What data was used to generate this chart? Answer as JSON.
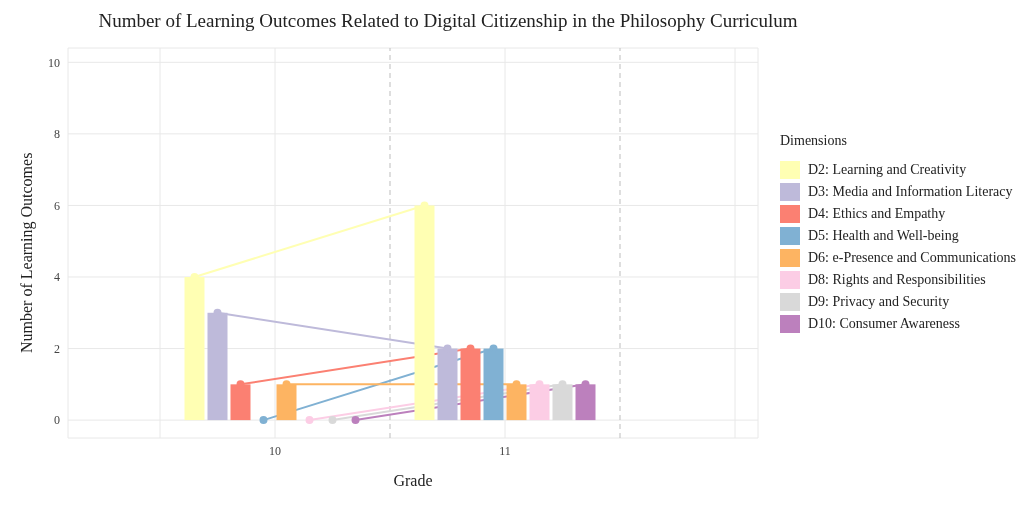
{
  "chart_data": {
    "type": "bar",
    "title": "Number of Learning Outcomes Related to Digital Citizenship in the Philosophy Curriculum",
    "xlabel": "Grade",
    "ylabel": "Number of Learning Outcomes",
    "legend_title": "Dimensions",
    "xlim": [
      9.1,
      12.1
    ],
    "xticks": [
      {
        "value": 9.5,
        "label": null
      },
      10,
      11,
      {
        "value": 12,
        "label": null
      }
    ],
    "ylim": [
      -0.5,
      10.4
    ],
    "yticks": [
      0,
      2,
      4,
      6,
      8,
      10
    ],
    "grid": true,
    "legend": "right",
    "marker": "circle",
    "line_style": "solid",
    "ref_lines": [
      {
        "axis": "x",
        "value": 10.5,
        "label": null,
        "line_style": "dashed",
        "color": "#bdbdbd"
      },
      {
        "axis": "x",
        "value": 11.5,
        "label": null,
        "line_style": "dashed",
        "color": "#bdbdbd"
      }
    ],
    "series": [
      {
        "name": "D2: Learning and Creativity",
        "color": "#ffffb3",
        "x": [
          9.65,
          10.65
        ],
        "values": [
          4,
          6
        ]
      },
      {
        "name": "D3: Media and Information Literacy",
        "color": "#bebada",
        "x": [
          9.75,
          10.75
        ],
        "values": [
          3,
          2
        ]
      },
      {
        "name": "D4: Ethics and Empathy",
        "color": "#fb8072",
        "x": [
          9.85,
          10.85
        ],
        "values": [
          1,
          2
        ]
      },
      {
        "name": "D5: Health and Well-being",
        "color": "#80b1d3",
        "x": [
          9.95,
          10.95
        ],
        "values": [
          0,
          2
        ]
      },
      {
        "name": "D6: e-Presence and Communications",
        "color": "#fdb462",
        "x": [
          10.05,
          11.05
        ],
        "values": [
          1,
          1
        ]
      },
      {
        "name": "D8: Rights and Responsibilities",
        "color": "#fccde5",
        "x": [
          10.15,
          11.15
        ],
        "values": [
          0,
          1
        ]
      },
      {
        "name": "D9: Privacy and Security",
        "color": "#d9d9d9",
        "x": [
          10.25,
          11.25
        ],
        "values": [
          0,
          1
        ]
      },
      {
        "name": "D10: Consumer Awareness",
        "color": "#bc80bd",
        "x": [
          10.35,
          11.35
        ],
        "values": [
          0,
          1
        ]
      },
      {
        "type": "line",
        "color": "#ffffb3",
        "x": [
          9.65,
          10.65
        ],
        "values": [
          4,
          6
        ]
      },
      {
        "type": "line",
        "color": "#bebada",
        "x": [
          9.75,
          10.75
        ],
        "values": [
          3,
          2
        ]
      },
      {
        "type": "line",
        "color": "#fb8072",
        "x": [
          9.85,
          10.85
        ],
        "values": [
          1,
          2
        ]
      },
      {
        "type": "line",
        "color": "#80b1d3",
        "x": [
          9.95,
          10.95
        ],
        "values": [
          0,
          2
        ]
      },
      {
        "type": "line",
        "color": "#fdb462",
        "x": [
          10.05,
          11.05
        ],
        "values": [
          1,
          1
        ]
      },
      {
        "type": "line",
        "color": "#fccde5",
        "x": [
          10.15,
          11.15
        ],
        "values": [
          0,
          1
        ]
      },
      {
        "type": "line",
        "color": "#d9d9d9",
        "x": [
          10.25,
          11.25
        ],
        "values": [
          0,
          1
        ]
      },
      {
        "type": "line",
        "color": "#bc80bd",
        "x": [
          10.35,
          11.35
        ],
        "values": [
          0,
          1
        ]
      }
    ]
  }
}
